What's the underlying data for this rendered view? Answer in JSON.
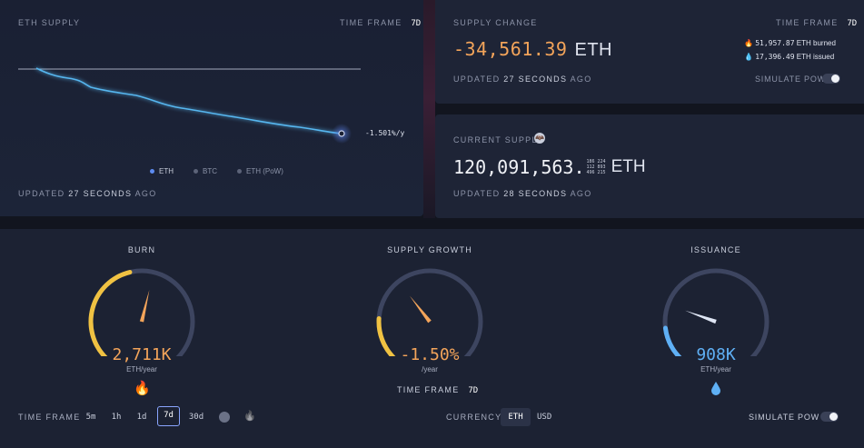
{
  "supply_panel": {
    "title": "ETH SUPPLY",
    "time_frame_label": "TIME FRAME",
    "time_frame_value": "7d",
    "rate_label": "-1.501%/y",
    "legend": [
      "ETH",
      "BTC",
      "ETH (PoW)"
    ],
    "legend_colors": [
      "#5d8cf2",
      "#5c6378",
      "#5c6378"
    ],
    "updated_prefix": "UPDATED",
    "updated_value": "27 SECONDS",
    "updated_suffix": "AGO"
  },
  "supply_change": {
    "title": "SUPPLY CHANGE",
    "time_frame_label": "TIME FRAME",
    "time_frame_value": "7d",
    "value": "-34,561.39",
    "unit": "ETH",
    "burned_value": "51,957.87",
    "burned_label": "ETH burned",
    "issued_value": "17,396.49",
    "issued_label": "ETH issued",
    "updated_prefix": "UPDATED",
    "updated_value": "27 SECONDS",
    "updated_suffix": "AGO",
    "simulate_label": "SIMULATE PoW"
  },
  "current_supply": {
    "title": "CURRENT SUPPLY",
    "value": "120,091,563.",
    "decimals": [
      "186 224",
      "112 893",
      "496 215"
    ],
    "unit": "ETH",
    "updated_prefix": "UPDATED",
    "updated_value": "28 SECONDS",
    "updated_suffix": "AGO"
  },
  "gauges": {
    "burn": {
      "title": "BURN",
      "value": "2,711K",
      "unit": "ETH/year",
      "fill_fraction": 0.45,
      "needle_fraction": 0.55,
      "color": "#f0c242"
    },
    "supply_growth": {
      "title": "SUPPLY GROWTH",
      "value": "-1.50%",
      "unit": "/year",
      "fill_fraction": 0.18,
      "needle_fraction": 0.36,
      "color": "#f0c242"
    },
    "issuance": {
      "title": "ISSUANCE",
      "value": "908K",
      "unit": "ETH/year",
      "fill_fraction": 0.14,
      "needle_fraction": 0.24,
      "color": "#5fb0f5"
    },
    "growth_time_frame_label": "TIME FRAME",
    "growth_time_frame_value": "7d"
  },
  "bottom_controls": {
    "time_frame_label": "TIME FRAME",
    "time_frames": [
      "5m",
      "1h",
      "1d",
      "7d",
      "30d"
    ],
    "selected": "7d",
    "currency_label": "CURRENCY",
    "currencies": [
      "ETH",
      "USD"
    ],
    "selected_currency": "ETH",
    "simulate_label": "SIMULATE PoW"
  },
  "colors": {
    "accent_orange": "#f3a45a",
    "accent_blue": "#5fb0f5",
    "line": "#56b6ef"
  }
}
